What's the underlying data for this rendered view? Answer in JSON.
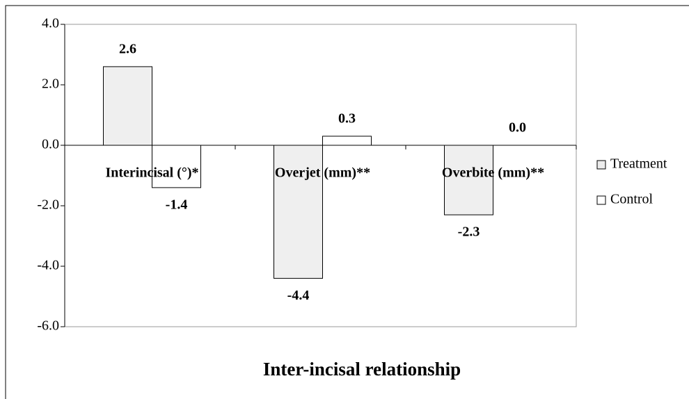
{
  "chart_data": {
    "type": "bar",
    "title": "Inter-incisal relationship",
    "categories": [
      "Interincisal (°)*",
      "Overjet (mm)**",
      "Overbite (mm)**"
    ],
    "series": [
      {
        "name": "Treatment",
        "color": "#ececec",
        "values": [
          2.6,
          -4.4,
          -2.3
        ],
        "value_labels": [
          "2.6",
          "-4.4",
          "-2.3"
        ]
      },
      {
        "name": "Control",
        "color": "#ffffff",
        "values": [
          -1.4,
          0.3,
          0.0
        ],
        "value_labels": [
          "-1.4",
          "0.3",
          "0.0"
        ]
      }
    ],
    "ylim": [
      -6,
      4
    ],
    "yticks": [
      {
        "value": -6,
        "label": "-6.0"
      },
      {
        "value": -4,
        "label": "-4.0"
      },
      {
        "value": -2,
        "label": "-2.0"
      },
      {
        "value": 0,
        "label": "0.0"
      },
      {
        "value": 2,
        "label": "2.0"
      },
      {
        "value": 4,
        "label": "4.0"
      }
    ],
    "legend": "right"
  }
}
